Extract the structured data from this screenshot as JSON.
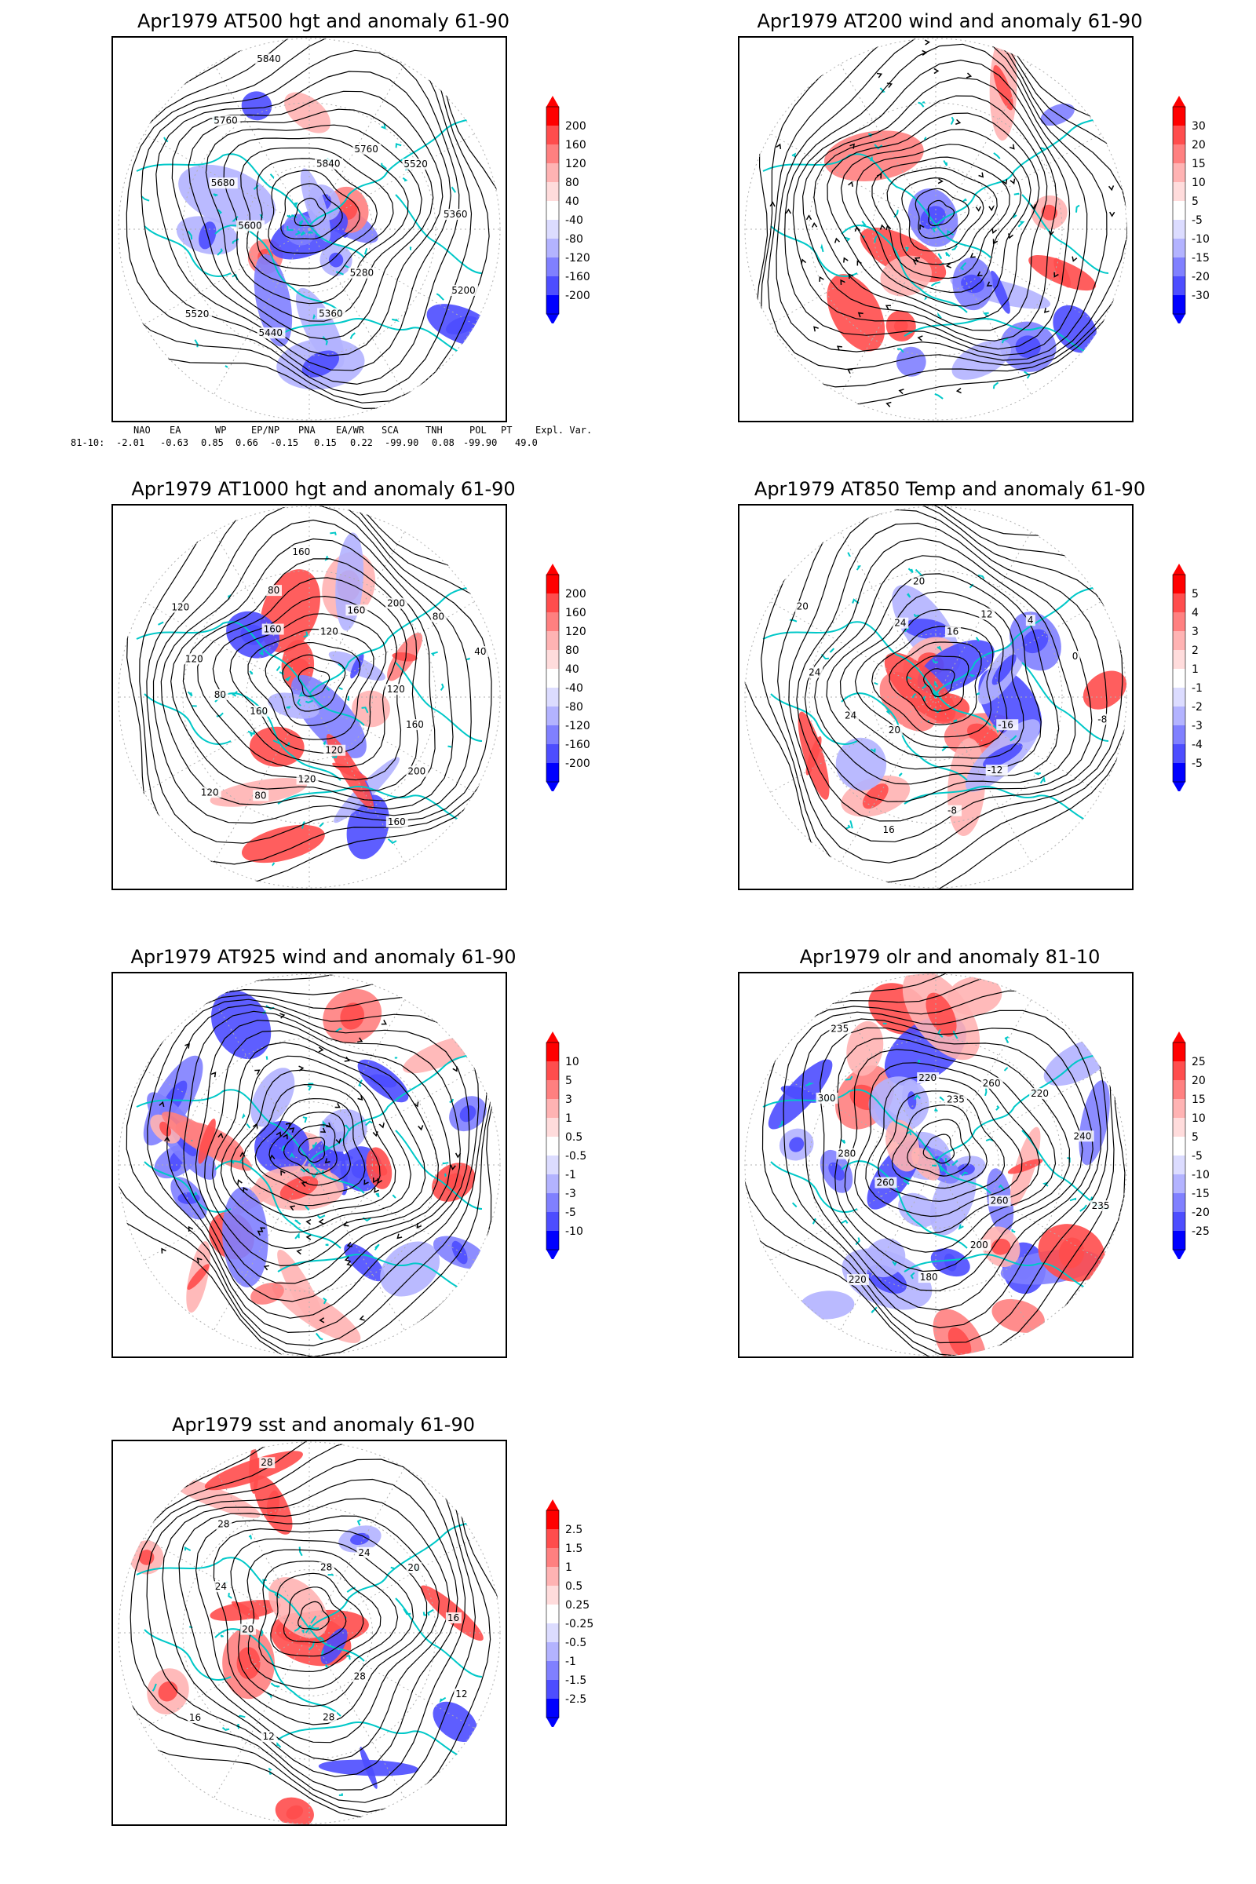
{
  "colors": {
    "red_ramp": [
      "#ff0000",
      "#ff4d4d",
      "#ff8080",
      "#ffb3b3",
      "#ffdcdc"
    ],
    "blue_ramp": [
      "#dcdcff",
      "#b3b3ff",
      "#8080ff",
      "#4d4dff",
      "#0000ff"
    ],
    "contour": "#000000",
    "coast": "#00c8c8",
    "grid": "#b0b0b0"
  },
  "panels": [
    {
      "title": "Apr1979 AT500 hgt and anomaly 61-90",
      "type": "contour",
      "colorbar_labels": [
        "200",
        "160",
        "120",
        "80",
        "40",
        "-40",
        "-80",
        "-120",
        "-160",
        "-200"
      ],
      "contour_labels": [
        "5840",
        "5760",
        "5520",
        "5360",
        "5200",
        "5280",
        "5360",
        "5440",
        "5520",
        "5600",
        "5680",
        "5760",
        "5840"
      ]
    },
    {
      "title": "Apr1979 AT200 wind and anomaly 61-90",
      "type": "streamline",
      "colorbar_labels": [
        "30",
        "20",
        "15",
        "10",
        "5",
        "-5",
        "-10",
        "-15",
        "-20",
        "-30"
      ],
      "contour_labels": []
    },
    {
      "title": "Apr1979 AT1000 hgt and anomaly 61-90",
      "type": "contour",
      "colorbar_labels": [
        "200",
        "160",
        "120",
        "80",
        "40",
        "-40",
        "-80",
        "-120",
        "-160",
        "-200"
      ],
      "contour_labels": [
        "120",
        "160",
        "200",
        "80",
        "40",
        "120",
        "160",
        "200",
        "160",
        "120",
        "120",
        "80",
        "120",
        "160",
        "80",
        "120",
        "120",
        "160",
        "80",
        "160"
      ]
    },
    {
      "title": "Apr1979 AT850 Temp and anomaly 61-90",
      "type": "contour",
      "colorbar_labels": [
        "5",
        "4",
        "3",
        "2",
        "1",
        "-1",
        "-2",
        "-3",
        "-4",
        "-5"
      ],
      "contour_labels": [
        "16",
        "12",
        "4",
        "0",
        "-8",
        "-16",
        "-12",
        "-8",
        "16",
        "20",
        "24",
        "24",
        "20",
        "24",
        "20"
      ]
    },
    {
      "title": "Apr1979 AT925 wind and anomaly 61-90",
      "type": "streamline",
      "colorbar_labels": [
        "10",
        "5",
        "3",
        "1",
        "0.5",
        "-0.5",
        "-1",
        "-3",
        "-5",
        "-10"
      ],
      "contour_labels": []
    },
    {
      "title": "Apr1979 olr and anomaly 81-10",
      "type": "contour",
      "colorbar_labels": [
        "25",
        "20",
        "15",
        "10",
        "5",
        "-5",
        "-10",
        "-15",
        "-20",
        "-25"
      ],
      "contour_labels": [
        "235",
        "260",
        "220",
        "240",
        "235",
        "260",
        "200",
        "180",
        "220",
        "260",
        "280",
        "300",
        "235",
        "220"
      ]
    },
    {
      "title": "Apr1979 sst and anomaly 61-90",
      "type": "contour",
      "colorbar_labels": [
        "2.5",
        "1.5",
        "1",
        "0.5",
        "0.25",
        "-0.25",
        "-0.5",
        "-1",
        "-1.5",
        "-2.5"
      ],
      "contour_labels": [
        "28",
        "24",
        "20",
        "16",
        "12",
        "28",
        "28",
        "12",
        "16",
        "20",
        "24",
        "28",
        "28"
      ]
    }
  ],
  "teleconnections": {
    "headers": [
      "NAO",
      "EA",
      "WP",
      "EP/NP",
      "PNA",
      "EA/WR",
      "SCA",
      "TNH",
      "POL",
      "PT",
      "Expl. Var."
    ],
    "row_label": "81-10:",
    "values": [
      "-2.01",
      "-0.63",
      "0.85",
      "0.66",
      "-0.15",
      "0.15",
      "0.22",
      "-99.90",
      "0.08",
      "-99.90",
      "49.0"
    ]
  }
}
